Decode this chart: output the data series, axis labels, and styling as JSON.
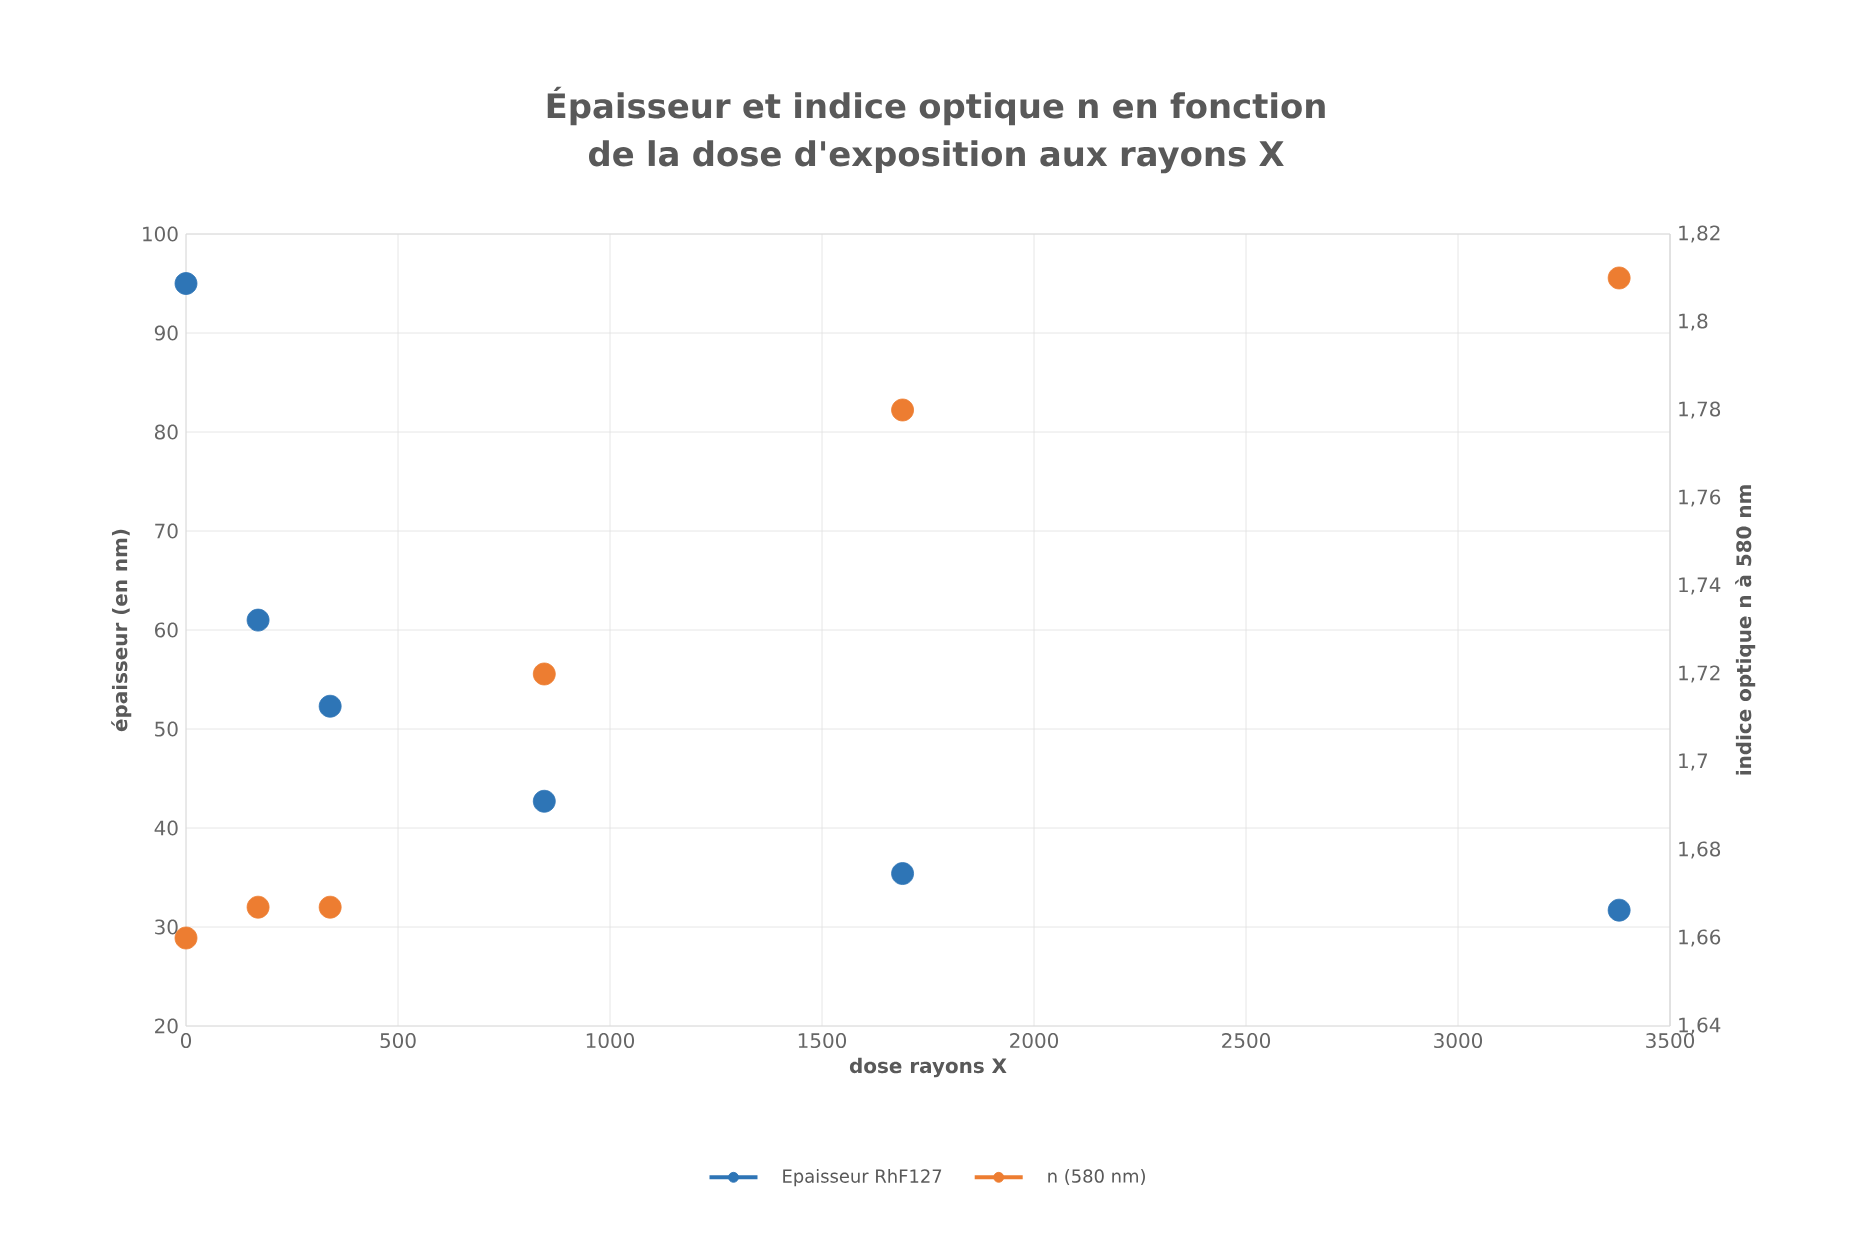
{
  "chart_data": {
    "type": "scatter",
    "title": "Épaisseur et indice optique n en fonction de la dose d'exposition aux rayons X",
    "xlabel": "dose rayons X",
    "ylabel": "épaisseur (en nm)",
    "y2label": "indice optique n à 580 nm",
    "x": [
      0,
      170,
      340,
      845,
      1690,
      3380
    ],
    "series": [
      {
        "name": "Epaisseur RhF127",
        "color": "#2e75b6",
        "values": [
          95,
          61,
          52.3,
          42.7,
          35.4,
          31.7
        ]
      },
      {
        "name": "n (580 nm)",
        "color": "#ed7d31",
        "axis": "y2",
        "values": [
          1.66,
          1.667,
          1.667,
          1.72,
          1.78,
          1.81
        ]
      }
    ],
    "xlim": [
      0,
      3500
    ],
    "xticks": [
      0,
      500,
      1000,
      1500,
      2000,
      2500,
      3000,
      3500
    ],
    "ylim": [
      20,
      100
    ],
    "yticks": [
      20,
      30,
      40,
      50,
      60,
      70,
      80,
      90,
      100
    ],
    "y2lim": [
      1.64,
      1.82
    ],
    "y2ticks": [
      {
        "value": 1.64,
        "label": "1,64"
      },
      {
        "value": 1.66,
        "label": "1,66"
      },
      {
        "value": 1.68,
        "label": "1,68"
      },
      {
        "value": 1.7,
        "label": "1,7"
      },
      {
        "value": 1.72,
        "label": "1,72"
      },
      {
        "value": 1.74,
        "label": "1,74"
      },
      {
        "value": 1.76,
        "label": "1,76"
      },
      {
        "value": 1.78,
        "label": "1,78"
      },
      {
        "value": 1.8,
        "label": "1,8"
      },
      {
        "value": 1.82,
        "label": "1,82"
      }
    ],
    "grid": true,
    "legend": "bottom",
    "marker": "circle"
  }
}
